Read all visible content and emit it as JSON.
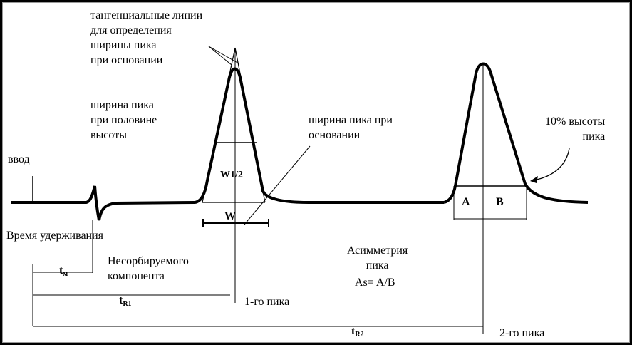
{
  "labels": {
    "tangent_lines": "тангенциальные линии\nдля определения\nширины пика\nпри основании",
    "half_height_width": "ширина пика\nпри половине\nвысоты",
    "base_width": "ширина пика при\nосновании",
    "ten_percent": "10% высоты\nпика",
    "injection": "ввод",
    "w_half": "W1/2",
    "w": "W",
    "retention_time": "Время удерживания",
    "unretained": "Несорбируемого\nкомпонента",
    "asymmetry": "Асимметрия\nпика",
    "asymmetry_formula": "As= A/B",
    "a": "A",
    "b": "B",
    "first_peak": "1-го пика",
    "second_peak": "2-го пика"
  },
  "times": {
    "tm_main": "t",
    "tm_sub": "м",
    "tr1_main": "t",
    "tr1_sub": "R1",
    "tr2_main": "t",
    "tr2_sub": "R2"
  }
}
